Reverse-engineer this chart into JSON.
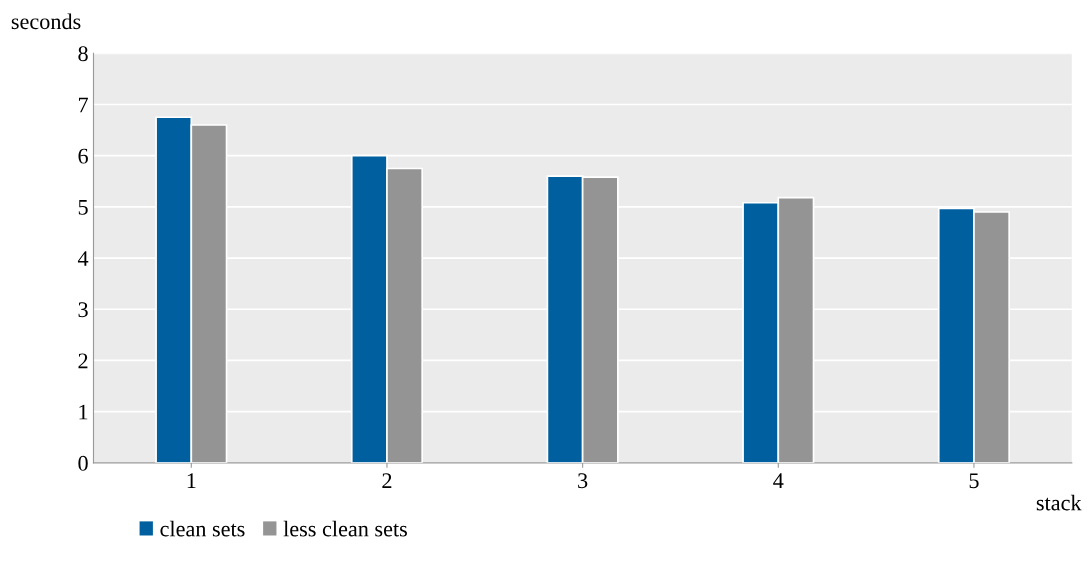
{
  "chart_data": {
    "type": "bar",
    "xlabel": "stack",
    "ylabel": "seconds",
    "categories": [
      "1",
      "2",
      "3",
      "4",
      "5"
    ],
    "series": [
      {
        "name": "clean sets",
        "color": "#00609f",
        "values": [
          6.75,
          6.0,
          5.6,
          5.08,
          4.97
        ]
      },
      {
        "name": "less clean sets",
        "color": "#949494",
        "values": [
          6.6,
          5.75,
          5.58,
          5.18,
          4.9
        ]
      }
    ],
    "ylim": [
      0,
      8
    ],
    "yticks": [
      0,
      1,
      2,
      3,
      4,
      5,
      6,
      7,
      8
    ],
    "grid": "y",
    "legend": "bottom left"
  }
}
